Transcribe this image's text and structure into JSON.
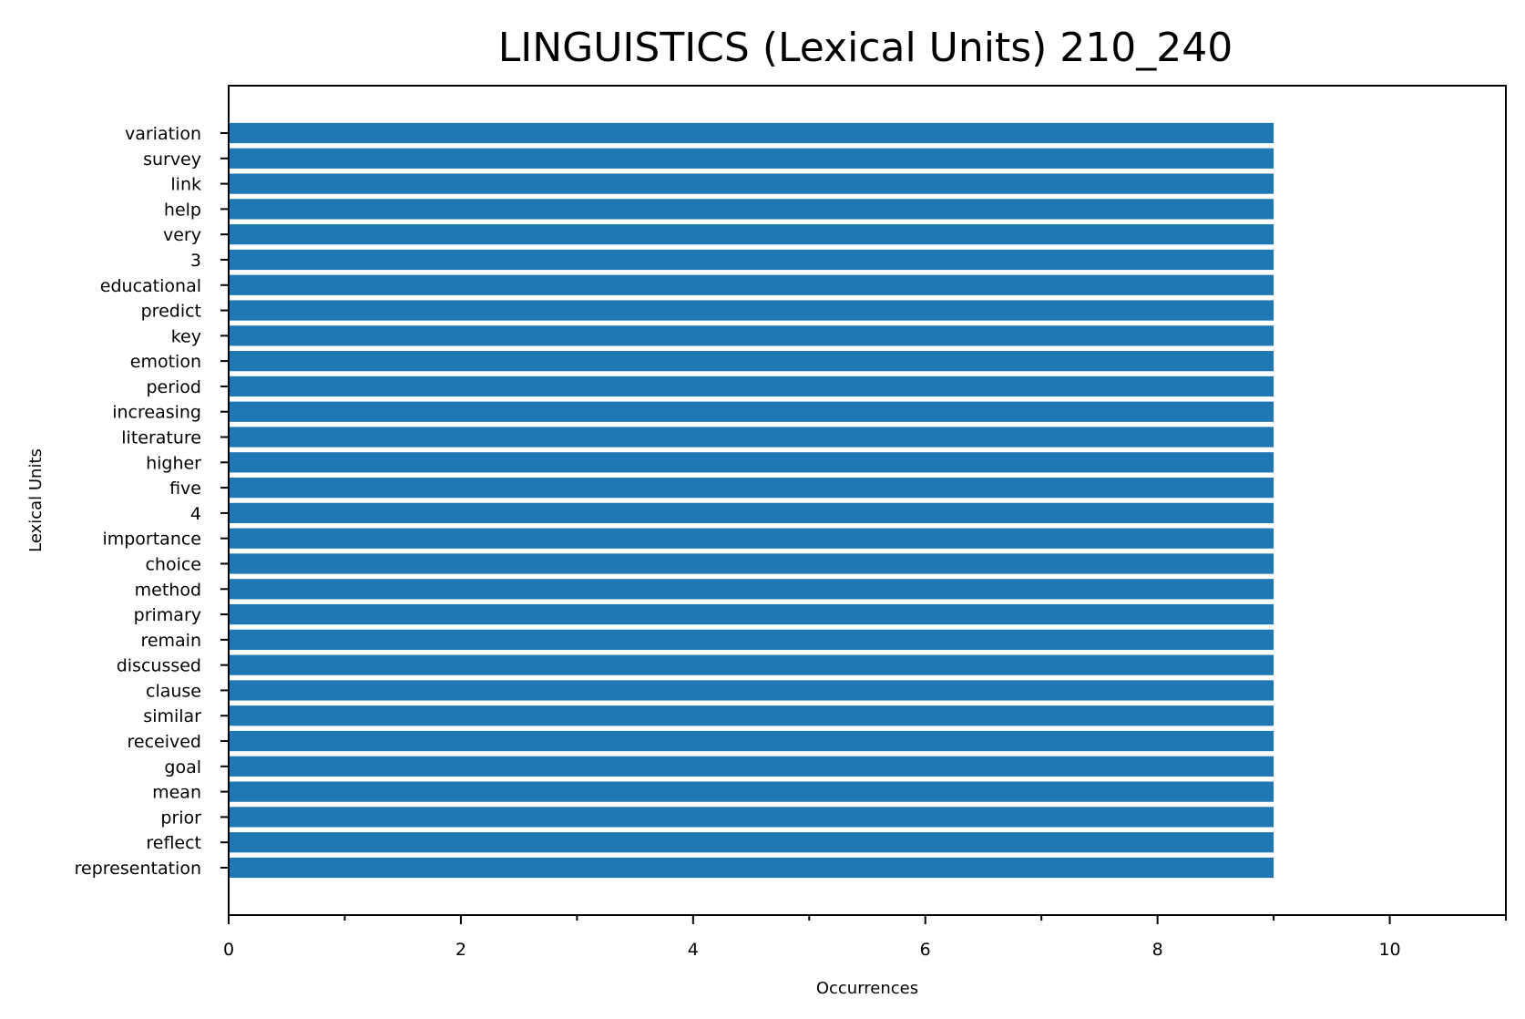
{
  "chart_data": {
    "type": "bar",
    "orientation": "horizontal",
    "title": "LINGUISTICS (Lexical Units) 210_240",
    "xlabel": "Occurrences",
    "ylabel": "Lexical Units",
    "xlim": [
      0,
      11
    ],
    "x_ticks": [
      0,
      2,
      4,
      6,
      8,
      10
    ],
    "x_minor_ticks": [
      1,
      3,
      5,
      7,
      9,
      11
    ],
    "grid": false,
    "bar_color": "#1f77b4",
    "categories": [
      "variation",
      "survey",
      "link",
      "help",
      "very",
      "3",
      "educational",
      "predict",
      "key",
      "emotion",
      "period",
      "increasing",
      "literature",
      "higher",
      "five",
      "4",
      "importance",
      "choice",
      "method",
      "primary",
      "remain",
      "discussed",
      "clause",
      "similar",
      "received",
      "goal",
      "mean",
      "prior",
      "reflect",
      "representation"
    ],
    "values": [
      9,
      9,
      9,
      9,
      9,
      9,
      9,
      9,
      9,
      9,
      9,
      9,
      9,
      9,
      9,
      9,
      9,
      9,
      9,
      9,
      9,
      9,
      9,
      9,
      9,
      9,
      9,
      9,
      9,
      9
    ]
  }
}
